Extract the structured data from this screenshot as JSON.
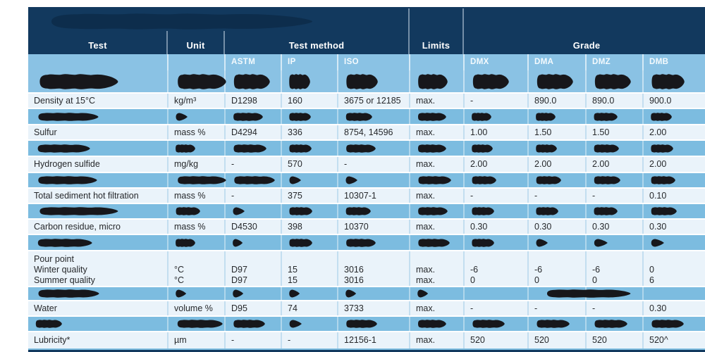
{
  "colors": {
    "header_navy": "#12395e",
    "subheader_blue": "#8ac2e4",
    "redacted_row_blue": "#7cbce0",
    "data_row_white": "#eaf3fa",
    "redaction_black": "#17171b",
    "header_text": "#ffffff",
    "data_text": "#26282b"
  },
  "table": {
    "header": {
      "test": "Test",
      "unit": "Unit",
      "method": "Test method",
      "limits": "Limits",
      "grade": "Grade"
    },
    "subheader": {
      "astm": "ASTM",
      "ip": "IP",
      "iso": "ISO",
      "dmx": "DMX",
      "dma": "DMA",
      "dmz": "DMZ",
      "dmb": "DMB"
    },
    "header_blob": [
      400,
      0
    ],
    "rows": [
      {
        "type": "redacted",
        "blobs": {
          "test": [
            120
          ],
          "unit": [
            74
          ],
          "astm": [
            55
          ],
          "ip": [
            32
          ],
          "iso": [
            48
          ],
          "limits": [
            45
          ],
          "dmx": [
            55
          ],
          "dma": [
            55
          ],
          "dmz": [
            55
          ],
          "dmb": [
            50
          ]
        }
      },
      {
        "type": "data",
        "cells": {
          "test": "Density at 15°C",
          "unit": "kg/m³",
          "astm": "D1298",
          "ip": "160",
          "iso": "3675 or 12185",
          "limits": "max.",
          "dmx": "-",
          "dma": "890.0",
          "dmz": "890.0",
          "dmb": "900.0"
        }
      },
      {
        "type": "redacted",
        "blobs": {
          "test": [
            92
          ],
          "unit": [
            20
          ],
          "astm": [
            45
          ],
          "ip": [
            33
          ],
          "iso": [
            40
          ],
          "limits": [
            43
          ],
          "dmx": [
            30
          ],
          "dma": [
            30
          ],
          "dmz": [
            36
          ],
          "dmb": [
            32
          ]
        }
      },
      {
        "type": "data",
        "cells": {
          "test": "Sulfur",
          "unit": "mass %",
          "astm": "D4294",
          "ip": "336",
          "iso": "8754, 14596",
          "limits": "max.",
          "dmx": "1.00",
          "dma": "1.50",
          "dmz": "1.50",
          "dmb": "2.00"
        }
      },
      {
        "type": "redacted",
        "blobs": {
          "test": [
            80
          ],
          "unit": [
            30
          ],
          "astm": [
            50
          ],
          "ip": [
            34
          ],
          "iso": [
            45
          ],
          "limits": [
            43
          ],
          "dmx": [
            32
          ],
          "dma": [
            32
          ],
          "dmz": [
            38
          ],
          "dmb": [
            34
          ]
        }
      },
      {
        "type": "data",
        "cells": {
          "test": "Hydrogen sulfide",
          "unit": "mg/kg",
          "astm": "-",
          "ip": "570",
          "iso": "-",
          "limits": "max.",
          "dmx": "2.00",
          "dma": "2.00",
          "dmz": "2.00",
          "dmb": "2.00"
        }
      },
      {
        "type": "redacted",
        "blobs": {
          "test": [
            90
          ],
          "unit": [
            74
          ],
          "astm": [
            62
          ],
          "ip": [
            20
          ],
          "iso": [
            20
          ],
          "limits": [
            50
          ],
          "dmx": [
            37
          ],
          "dma": [
            38
          ],
          "dmz": [
            40
          ],
          "dmb": [
            37
          ]
        }
      },
      {
        "type": "data",
        "cells": {
          "test": "Total sediment hot filtration",
          "unit": "mass %",
          "astm": "-",
          "ip": "375",
          "iso": "10307-1",
          "limits": "max.",
          "dmx": "-",
          "dma": "-",
          "dmz": "-",
          "dmb": "0.10"
        }
      },
      {
        "type": "redacted",
        "blobs": {
          "test": [
            120
          ],
          "unit": [
            37
          ],
          "astm": [
            20
          ],
          "ip": [
            35
          ],
          "iso": [
            38
          ],
          "limits": [
            45
          ],
          "dmx": [
            34
          ],
          "dma": [
            34
          ],
          "dmz": [
            36
          ],
          "dmb": [
            39
          ]
        }
      },
      {
        "type": "data",
        "cells": {
          "test": "Carbon residue, micro",
          "unit": "mass %",
          "astm": "D4530",
          "ip": "398",
          "iso": "10370",
          "limits": "max.",
          "dmx": "0.30",
          "dma": "0.30",
          "dmz": "0.30",
          "dmb": "0.30"
        }
      },
      {
        "type": "redacted",
        "blobs": {
          "test": [
            83
          ],
          "unit": [
            30
          ],
          "astm": [
            17
          ],
          "ip": [
            35
          ],
          "iso": [
            45
          ],
          "limits": [
            48
          ],
          "dmx": [
            34
          ],
          "dma": [
            20
          ],
          "dmz": [
            23
          ],
          "dmb": [
            22
          ]
        }
      },
      {
        "type": "data",
        "cells": {
          "test": "Pour point\nWinter quality\nSummer quality",
          "unit": "\n°C\n°C",
          "astm": "\nD97\nD97",
          "ip": "\n15\n15",
          "iso": "\n3016\n3016",
          "limits": "\nmax.\nmax.",
          "dmx": "\n-6\n0",
          "dma": "\n-6\n0",
          "dmz": "\n-6\n0",
          "dmb": "\n0\n6"
        }
      },
      {
        "type": "redacted",
        "blobs": {
          "test": [
            93
          ],
          "unit": [
            18
          ],
          "astm": [
            18
          ],
          "ip": [
            18
          ],
          "iso": [
            18
          ],
          "limits": [
            18
          ],
          "dma": [
            128,
            9
          ]
        }
      },
      {
        "type": "data",
        "cells": {
          "test": "Water",
          "unit": "volume %",
          "astm": "D95",
          "ip": "74",
          "iso": "3733",
          "limits": "max.",
          "dmx": "-",
          "dma": "-",
          "dmz": "-",
          "dmb": "0.30"
        }
      },
      {
        "type": "redacted",
        "blobs": {
          "test": [
            40
          ],
          "unit": [
            69
          ],
          "astm": [
            48
          ],
          "ip": [
            21
          ],
          "iso": [
            47
          ],
          "limits": [
            43
          ],
          "dmx": [
            49
          ],
          "dma": [
            50
          ],
          "dmz": [
            50
          ],
          "dmb": [
            49
          ]
        }
      },
      {
        "type": "data",
        "cells": {
          "test": "Lubricity*",
          "unit": "µm",
          "astm": "-",
          "ip": "-",
          "iso": "12156-1",
          "limits": "max.",
          "dmx": "520",
          "dma": "520",
          "dmz": "520",
          "dmb": "520^"
        }
      }
    ]
  }
}
